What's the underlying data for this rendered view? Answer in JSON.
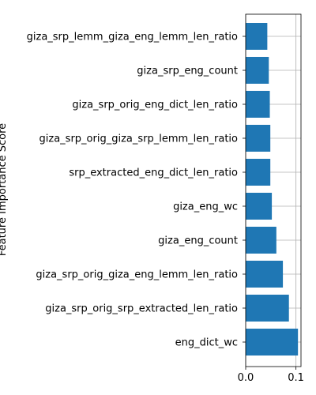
{
  "chart_data": {
    "type": "bar",
    "orientation": "horizontal",
    "title": "",
    "xlabel": "",
    "ylabel": "Feature Importance Score",
    "xlim": [
      0.0,
      0.11
    ],
    "xticks": [
      0.0,
      0.1
    ],
    "xtick_labels": [
      "0.0",
      "0.1"
    ],
    "grid": "vertical",
    "legend": "none",
    "bar_color": "#1f77b4",
    "categories": [
      "giza_srp_lemm_giza_eng_lemm_len_ratio",
      "giza_srp_eng_count",
      "giza_srp_orig_eng_dict_len_ratio",
      "giza_srp_orig_giza_srp_lemm_len_ratio",
      "srp_extracted_eng_dict_len_ratio",
      "giza_eng_wc",
      "giza_eng_count",
      "giza_srp_orig_giza_eng_lemm_len_ratio",
      "giza_srp_orig_srp_extracted_len_ratio",
      "eng_dict_wc"
    ],
    "values": [
      0.043,
      0.046,
      0.048,
      0.049,
      0.049,
      0.052,
      0.061,
      0.074,
      0.086,
      0.104
    ]
  }
}
